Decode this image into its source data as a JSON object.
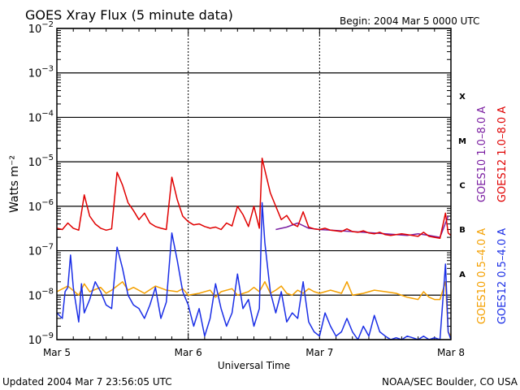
{
  "header": {
    "title": "GOES Xray Flux (5 minute data)",
    "begin": "Begin:  2004 Mar 5 0000 UTC"
  },
  "footer": {
    "updated": "Updated 2004 Mar  7 23:56:05 UTC",
    "credit": "NOAA/SEC Boulder, CO USA"
  },
  "chart_data": {
    "type": "line",
    "title": "GOES Xray Flux (5 minute data)",
    "xlabel": "Universal Time",
    "ylabel": "Watts m⁻²",
    "x_unit": "hours since 2004 Mar 5 0000 UTC",
    "xlim": [
      0,
      72
    ],
    "ylim": [
      1e-09,
      0.01
    ],
    "y_scale": "log",
    "x_ticks": [
      {
        "x": 0,
        "label": "Mar 5"
      },
      {
        "x": 24,
        "label": "Mar 6"
      },
      {
        "x": 48,
        "label": "Mar 7"
      },
      {
        "x": 72,
        "label": "Mar 8"
      }
    ],
    "y_ticks": [
      {
        "exp": -2,
        "label": "10",
        "sup": "−2"
      },
      {
        "exp": -3,
        "label": "10",
        "sup": "−3"
      },
      {
        "exp": -4,
        "label": "10",
        "sup": "−4"
      },
      {
        "exp": -5,
        "label": "10",
        "sup": "−5"
      },
      {
        "exp": -6,
        "label": "10",
        "sup": "−6"
      },
      {
        "exp": -7,
        "label": "10",
        "sup": "−7"
      },
      {
        "exp": -8,
        "label": "10",
        "sup": "−8"
      },
      {
        "exp": -9,
        "label": "10",
        "sup": "−9"
      }
    ],
    "flare_classes": [
      {
        "label": "X",
        "exp": -3.5
      },
      {
        "label": "M",
        "exp": -4.5
      },
      {
        "label": "C",
        "exp": -5.5
      },
      {
        "label": "B",
        "exp": -6.5
      },
      {
        "label": "A",
        "exp": -7.5
      }
    ],
    "grid": true,
    "legend_placement": "right",
    "series": [
      {
        "name": "GOES10 1.0–8.0 A",
        "color": "#7b1fa2",
        "points": [
          [
            40,
            3e-07
          ],
          [
            42,
            3.4e-07
          ],
          [
            44,
            4.2e-07
          ],
          [
            46,
            3.2e-07
          ],
          [
            48,
            3e-07
          ],
          [
            50,
            2.9e-07
          ],
          [
            52,
            2.8e-07
          ],
          [
            54,
            2.7e-07
          ],
          [
            56,
            2.6e-07
          ],
          [
            58,
            2.5e-07
          ],
          [
            60,
            2.4e-07
          ],
          [
            62,
            2.3e-07
          ],
          [
            64,
            2.2e-07
          ],
          [
            66,
            2.4e-07
          ],
          [
            68,
            2.2e-07
          ],
          [
            70,
            2e-07
          ],
          [
            71.5,
            6e-07
          ]
        ]
      },
      {
        "name": "GOES12 1.0–8.0 A",
        "color": "#e00000",
        "points": [
          [
            0,
            3.2e-07
          ],
          [
            1,
            3e-07
          ],
          [
            2,
            4.2e-07
          ],
          [
            3,
            3.2e-07
          ],
          [
            4,
            2.9e-07
          ],
          [
            5,
            1.8e-06
          ],
          [
            6,
            6e-07
          ],
          [
            7,
            4e-07
          ],
          [
            8,
            3.2e-07
          ],
          [
            9,
            2.9e-07
          ],
          [
            10,
            3.1e-07
          ],
          [
            11,
            5.8e-06
          ],
          [
            12,
            3e-06
          ],
          [
            13,
            1.2e-06
          ],
          [
            14,
            8e-07
          ],
          [
            15,
            5e-07
          ],
          [
            16,
            7e-07
          ],
          [
            17,
            4.2e-07
          ],
          [
            18,
            3.5e-07
          ],
          [
            19,
            3.2e-07
          ],
          [
            20,
            3e-07
          ],
          [
            21,
            4.5e-06
          ],
          [
            22,
            1.4e-06
          ],
          [
            23,
            6e-07
          ],
          [
            24,
            4.5e-07
          ],
          [
            25,
            3.8e-07
          ],
          [
            26,
            4e-07
          ],
          [
            27,
            3.5e-07
          ],
          [
            28,
            3.2e-07
          ],
          [
            29,
            3.4e-07
          ],
          [
            30,
            3e-07
          ],
          [
            31,
            4.2e-07
          ],
          [
            32,
            3.6e-07
          ],
          [
            33,
            1e-06
          ],
          [
            34,
            6.5e-07
          ],
          [
            35,
            3.5e-07
          ],
          [
            36,
            1e-06
          ],
          [
            37,
            3.2e-07
          ],
          [
            37.5,
            1.2e-05
          ],
          [
            38,
            6.5e-06
          ],
          [
            39,
            2e-06
          ],
          [
            40,
            1e-06
          ],
          [
            41,
            5e-07
          ],
          [
            42,
            6.2e-07
          ],
          [
            43,
            4e-07
          ],
          [
            44,
            3.5e-07
          ],
          [
            45,
            7.5e-07
          ],
          [
            46,
            3.4e-07
          ],
          [
            47,
            3.1e-07
          ],
          [
            48,
            3e-07
          ],
          [
            49,
            3.2e-07
          ],
          [
            50,
            2.9e-07
          ],
          [
            51,
            2.8e-07
          ],
          [
            52,
            2.7e-07
          ],
          [
            53,
            3.1e-07
          ],
          [
            54,
            2.7e-07
          ],
          [
            55,
            2.6e-07
          ],
          [
            56,
            2.8e-07
          ],
          [
            57,
            2.5e-07
          ],
          [
            58,
            2.4e-07
          ],
          [
            59,
            2.6e-07
          ],
          [
            60,
            2.3e-07
          ],
          [
            61,
            2.2e-07
          ],
          [
            62,
            2.3e-07
          ],
          [
            63,
            2.4e-07
          ],
          [
            64,
            2.3e-07
          ],
          [
            65,
            2.2e-07
          ],
          [
            66,
            2.1e-07
          ],
          [
            67,
            2.6e-07
          ],
          [
            68,
            2.1e-07
          ],
          [
            69,
            2e-07
          ],
          [
            70,
            1.9e-07
          ],
          [
            71,
            7e-07
          ],
          [
            71.5,
            2.5e-07
          ],
          [
            72,
            2.2e-07
          ]
        ]
      },
      {
        "name": "GOES10 0.5–4.0 A",
        "color": "#f4a000",
        "points": [
          [
            0,
            1.2e-08
          ],
          [
            2,
            1.6e-08
          ],
          [
            4,
            1e-08
          ],
          [
            5,
            1.8e-08
          ],
          [
            6,
            1.2e-08
          ],
          [
            8,
            1.5e-08
          ],
          [
            9,
            1.1e-08
          ],
          [
            10,
            1.3e-08
          ],
          [
            12,
            2e-08
          ],
          [
            13,
            1.3e-08
          ],
          [
            14,
            1.5e-08
          ],
          [
            16,
            1.1e-08
          ],
          [
            18,
            1.6e-08
          ],
          [
            20,
            1.3e-08
          ],
          [
            22,
            1.2e-08
          ],
          [
            23,
            1.4e-08
          ],
          [
            24,
            1e-08
          ],
          [
            26,
            1.1e-08
          ],
          [
            28,
            1.3e-08
          ],
          [
            29,
            9e-09
          ],
          [
            30,
            1.2e-08
          ],
          [
            32,
            1.4e-08
          ],
          [
            33,
            1e-08
          ],
          [
            35,
            1.2e-08
          ],
          [
            36,
            1.5e-08
          ],
          [
            37,
            1.2e-08
          ],
          [
            38,
            2e-08
          ],
          [
            39,
            1.1e-08
          ],
          [
            40,
            1.3e-08
          ],
          [
            41,
            1.6e-08
          ],
          [
            42,
            1.1e-08
          ],
          [
            43,
            1e-08
          ],
          [
            44,
            1.3e-08
          ],
          [
            45,
            1.1e-08
          ],
          [
            46,
            1.4e-08
          ],
          [
            47,
            1.2e-08
          ],
          [
            48,
            1.1e-08
          ],
          [
            50,
            1.3e-08
          ],
          [
            52,
            1.1e-08
          ],
          [
            53,
            2e-08
          ],
          [
            54,
            1e-08
          ],
          [
            56,
            1.1e-08
          ],
          [
            58,
            1.3e-08
          ],
          [
            60,
            1.2e-08
          ],
          [
            62,
            1.1e-08
          ],
          [
            64,
            9e-09
          ],
          [
            66,
            8e-09
          ],
          [
            67,
            1.2e-08
          ],
          [
            68,
            9e-09
          ],
          [
            69,
            8e-09
          ],
          [
            70,
            8e-09
          ],
          [
            71,
            2e-08
          ],
          [
            71.5,
            1.5e-09
          ],
          [
            72,
            1.2e-09
          ]
        ]
      },
      {
        "name": "GOES12 0.5–4.0 A",
        "color": "#1a2ee6",
        "points": [
          [
            0,
            4e-09
          ],
          [
            1,
            3e-09
          ],
          [
            1.5,
            1.2e-08
          ],
          [
            2,
            1.5e-08
          ],
          [
            2.5,
            8e-08
          ],
          [
            3,
            1.5e-08
          ],
          [
            4,
            2.5e-09
          ],
          [
            4.5,
            1.8e-08
          ],
          [
            5,
            4e-09
          ],
          [
            6,
            8e-09
          ],
          [
            7,
            2e-08
          ],
          [
            8,
            1.2e-08
          ],
          [
            9,
            6e-09
          ],
          [
            10,
            5e-09
          ],
          [
            11,
            1.2e-07
          ],
          [
            12,
            4e-08
          ],
          [
            13,
            1e-08
          ],
          [
            14,
            6e-09
          ],
          [
            15,
            5e-09
          ],
          [
            16,
            3e-09
          ],
          [
            17,
            6e-09
          ],
          [
            18,
            1.5e-08
          ],
          [
            19,
            3e-09
          ],
          [
            20,
            7e-09
          ],
          [
            21,
            2.5e-07
          ],
          [
            22,
            6e-08
          ],
          [
            23,
            1.2e-08
          ],
          [
            24,
            6e-09
          ],
          [
            25,
            2e-09
          ],
          [
            26,
            5e-09
          ],
          [
            27,
            1.2e-09
          ],
          [
            28,
            3e-09
          ],
          [
            29,
            1.8e-08
          ],
          [
            30,
            5e-09
          ],
          [
            31,
            2e-09
          ],
          [
            32,
            4e-09
          ],
          [
            33,
            3e-08
          ],
          [
            34,
            5e-09
          ],
          [
            35,
            8e-09
          ],
          [
            36,
            2e-09
          ],
          [
            37,
            5e-09
          ],
          [
            37.5,
            1.2e-06
          ],
          [
            38,
            1.5e-07
          ],
          [
            39,
            1.2e-08
          ],
          [
            40,
            4e-09
          ],
          [
            41,
            1.2e-08
          ],
          [
            42,
            2.5e-09
          ],
          [
            43,
            4e-09
          ],
          [
            44,
            3e-09
          ],
          [
            45,
            2e-08
          ],
          [
            46,
            2.5e-09
          ],
          [
            47,
            1.5e-09
          ],
          [
            48,
            1.2e-09
          ],
          [
            49,
            4e-09
          ],
          [
            50,
            2e-09
          ],
          [
            51,
            1.2e-09
          ],
          [
            52,
            1.5e-09
          ],
          [
            53,
            3e-09
          ],
          [
            54,
            1.5e-09
          ],
          [
            55,
            1e-09
          ],
          [
            56,
            2e-09
          ],
          [
            57,
            1.2e-09
          ],
          [
            58,
            3.5e-09
          ],
          [
            59,
            1.5e-09
          ],
          [
            60,
            1.2e-09
          ],
          [
            61,
            1e-09
          ],
          [
            62,
            1.1e-09
          ],
          [
            63,
            1e-09
          ],
          [
            64,
            1.2e-09
          ],
          [
            65,
            1.1e-09
          ],
          [
            66,
            1e-09
          ],
          [
            67,
            1.2e-09
          ],
          [
            68,
            1e-09
          ],
          [
            69,
            1.1e-09
          ],
          [
            70,
            1e-09
          ],
          [
            71,
            5e-08
          ],
          [
            71.5,
            1.5e-09
          ],
          [
            72,
            1e-09
          ]
        ]
      }
    ]
  }
}
